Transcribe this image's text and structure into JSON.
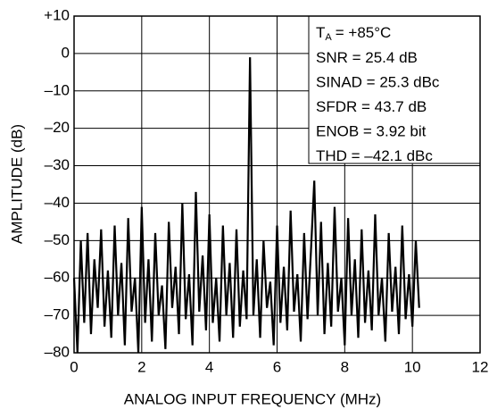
{
  "chart_data": {
    "type": "line",
    "xlabel": "ANALOG INPUT FREQUENCY (MHz)",
    "ylabel": "AMPLITUDE (dB)",
    "condition": {
      "symbol": "T",
      "subscript": "A",
      "value": "= +85°C"
    },
    "annotations": [
      "SNR = 25.4 dB",
      "SINAD = 25.3 dBc",
      "SFDR = 43.7 dB",
      "ENOB = 3.92 bit",
      "THD = –42.1 dBc"
    ],
    "xlim": [
      0,
      12
    ],
    "xticks": [
      0,
      2,
      4,
      6,
      8,
      10,
      12
    ],
    "ylim": [
      -80,
      10
    ],
    "yticks": [
      {
        "value": -80,
        "label": "–80"
      },
      {
        "value": -70,
        "label": "–70"
      },
      {
        "value": -60,
        "label": "–60"
      },
      {
        "value": -50,
        "label": "–50"
      },
      {
        "value": -40,
        "label": "–40"
      },
      {
        "value": -30,
        "label": "–30"
      },
      {
        "value": -20,
        "label": "–20"
      },
      {
        "value": -10,
        "label": "–10"
      },
      0,
      {
        "value": 10,
        "label": "+10"
      }
    ],
    "grid": true,
    "color": "#000000",
    "x": [
      0,
      0.1,
      0.2,
      0.3,
      0.4,
      0.5,
      0.6,
      0.7,
      0.8,
      0.9,
      1,
      1.1,
      1.2,
      1.3,
      1.4,
      1.5,
      1.6,
      1.7,
      1.8,
      1.9,
      2,
      2.1,
      2.2,
      2.3,
      2.4,
      2.5,
      2.6,
      2.7,
      2.8,
      2.9,
      3,
      3.1,
      3.2,
      3.3,
      3.4,
      3.5,
      3.6,
      3.7,
      3.8,
      3.9,
      4,
      4.1,
      4.2,
      4.3,
      4.4,
      4.5,
      4.6,
      4.7,
      4.8,
      4.9,
      5,
      5.1,
      5.2,
      5.3,
      5.4,
      5.5,
      5.6,
      5.7,
      5.8,
      5.9,
      6,
      6.1,
      6.2,
      6.3,
      6.4,
      6.5,
      6.6,
      6.7,
      6.8,
      6.9,
      7,
      7.1,
      7.2,
      7.3,
      7.4,
      7.5,
      7.6,
      7.7,
      7.8,
      7.9,
      8,
      8.1,
      8.2,
      8.3,
      8.4,
      8.5,
      8.6,
      8.7,
      8.8,
      8.9,
      9,
      9.1,
      9.2,
      9.3,
      9.4,
      9.5,
      9.6,
      9.7,
      9.8,
      9.9,
      10,
      10.1,
      10.2
    ],
    "values": [
      -60,
      -80,
      -50,
      -72,
      -48,
      -75,
      -55,
      -68,
      -47,
      -73,
      -58,
      -76,
      -46,
      -70,
      -56,
      -78,
      -44,
      -69,
      -60,
      -80,
      -41,
      -72,
      -55,
      -77,
      -48,
      -70,
      -62,
      -79,
      -45,
      -68,
      -57,
      -75,
      -40,
      -71,
      -59,
      -78,
      -37,
      -69,
      -54,
      -74,
      -43,
      -72,
      -60,
      -77,
      -46,
      -70,
      -56,
      -76,
      -47,
      -73,
      -58,
      -71,
      -1,
      -70,
      -55,
      -76,
      -50,
      -68,
      -61,
      -78,
      -46,
      -72,
      -57,
      -74,
      -42,
      -69,
      -59,
      -77,
      -48,
      -71,
      -53,
      -34,
      -70,
      -45,
      -75,
      -56,
      -73,
      -41,
      -69,
      -60,
      -78,
      -44,
      -70,
      -55,
      -76,
      -47,
      -72,
      -58,
      -74,
      -43,
      -70,
      -60,
      -77,
      -48,
      -69,
      -57,
      -75,
      -46,
      -71,
      -59,
      -73,
      -50,
      -68
    ]
  }
}
